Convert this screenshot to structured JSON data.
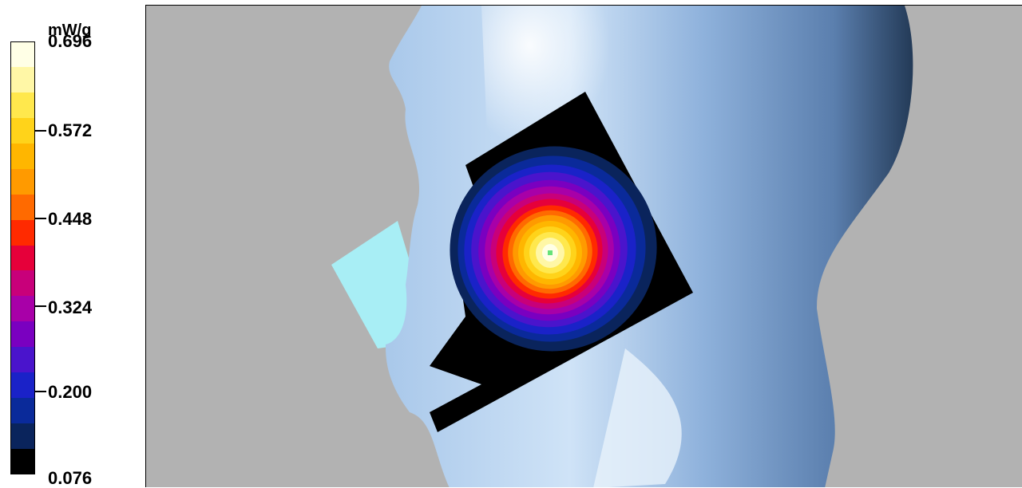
{
  "legend": {
    "unit": "mW/g",
    "ticks": [
      "0.696",
      "0.572",
      "0.448",
      "0.324",
      "0.200",
      "0.076"
    ],
    "colors": [
      "#ffffe6",
      "#fff7a6",
      "#ffe84d",
      "#ffd31a",
      "#ffb600",
      "#ff9a00",
      "#ff6a00",
      "#ff2a00",
      "#e6003a",
      "#c8007a",
      "#a800a8",
      "#7a00c0",
      "#4a14cc",
      "#1a22c8",
      "#0a2a9a",
      "#0a245c",
      "#000000"
    ]
  },
  "viewport": {
    "background": "#b2b2b2",
    "head_color": "#7fa6d4",
    "patch_color": "#a8eef5",
    "max_marker_color": "#66e27a"
  }
}
